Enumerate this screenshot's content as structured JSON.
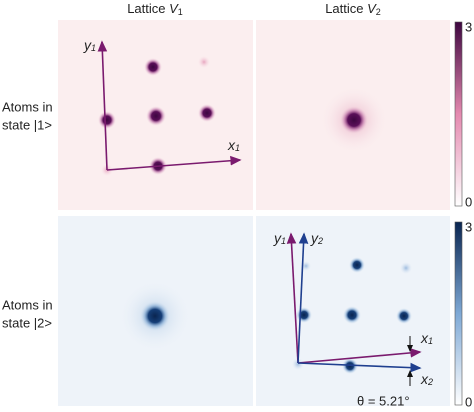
{
  "columns": [
    {
      "text": "Lattice ",
      "var": "V",
      "sub": "1"
    },
    {
      "text": "Lattice ",
      "var": "V",
      "sub": "2"
    }
  ],
  "rows": [
    {
      "lines": [
        "Atoms in",
        "state |1>"
      ]
    },
    {
      "lines": [
        "Atoms in",
        "state |2>"
      ]
    }
  ],
  "colorbars": [
    {
      "min": "0",
      "max": "3"
    },
    {
      "min": "0",
      "max": "3"
    }
  ],
  "axes_top": {
    "y": {
      "var": "y",
      "sub": "1"
    },
    "x": {
      "var": "x",
      "sub": "1"
    }
  },
  "axes_bottom": {
    "y1": {
      "var": "y",
      "sub": "1"
    },
    "y2": {
      "var": "y",
      "sub": "2"
    },
    "x1": {
      "var": "x",
      "sub": "1"
    },
    "x2": {
      "var": "x",
      "sub": "2"
    }
  },
  "angle_label": "θ = 5.21°"
}
